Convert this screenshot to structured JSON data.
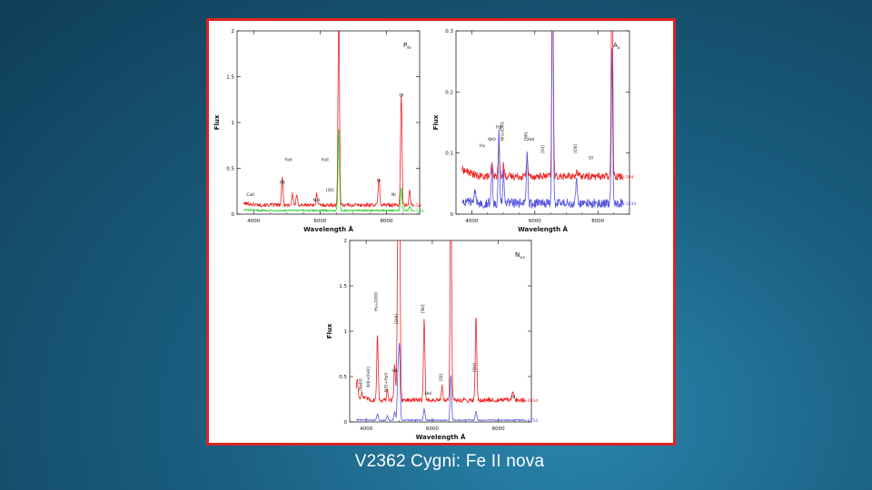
{
  "slide": {
    "caption": "V2362 Cygni:  Fe II nova"
  },
  "chart_data": [
    {
      "id": "p1",
      "type": "line",
      "xlabel": "Wavelength Å",
      "ylabel": "Flux",
      "xlim": [
        3500,
        9000
      ],
      "ylim": [
        0,
        2
      ],
      "xticks": [
        4000,
        6000,
        8000
      ],
      "xtick_labels": [
        "4000",
        "6000",
        "8000"
      ],
      "yticks": [
        0,
        0.5,
        1,
        1.5,
        2
      ],
      "ytick_labels": [
        "0",
        "0.5",
        "1",
        "1.5",
        "2"
      ],
      "stage_label": {
        "main": "P",
        "sub": "fe"
      },
      "color_key": {
        "red": "#e22",
        "green": "#2c2"
      },
      "series": [
        {
          "name": "+5d",
          "color": "red",
          "base": 0.1,
          "noise": 0.02,
          "lines": [
            [
              4861,
              0.3
            ],
            [
              5169,
              0.12
            ],
            [
              5300,
              0.1
            ],
            [
              5900,
              0.12
            ],
            [
              6563,
              2.2
            ],
            [
              7774,
              0.3
            ],
            [
              8446,
              1.2
            ],
            [
              8700,
              0.15
            ]
          ]
        },
        {
          "name": "+23d",
          "color": "green",
          "base": 0.04,
          "noise": 0.008,
          "lines": [
            [
              6563,
              0.9
            ],
            [
              8446,
              0.25
            ],
            [
              8700,
              0.05
            ]
          ]
        }
      ],
      "annotations": [
        {
          "text": "CaII",
          "x": 3900,
          "y": 0.2
        },
        {
          "text": "Hβ",
          "x": 4861,
          "y": 0.33
        },
        {
          "text": "FeII",
          "x": 5050,
          "y": 0.58
        },
        {
          "text": "FeII",
          "x": 6150,
          "y": 0.58
        },
        {
          "text": "[OI]",
          "x": 6300,
          "y": 0.25
        },
        {
          "text": "NaI",
          "x": 5890,
          "y": 0.14
        },
        {
          "text": "OI",
          "x": 7774,
          "y": 0.35
        },
        {
          "text": "NI",
          "x": 8216,
          "y": 0.2
        },
        {
          "text": "OI",
          "x": 8446,
          "y": 1.28
        }
      ]
    },
    {
      "id": "p2",
      "type": "line",
      "xlabel": "Wavelength Å",
      "ylabel": "Flux",
      "xlim": [
        3500,
        9000
      ],
      "ylim": [
        0,
        0.3
      ],
      "xticks": [
        4000,
        6000,
        8000
      ],
      "xtick_labels": [
        "4000",
        "6000",
        "8000"
      ],
      "yticks": [
        0,
        0.1,
        0.2,
        0.3
      ],
      "ytick_labels": [
        "0",
        "0.1",
        "0.2",
        "0.3"
      ],
      "stage_label": {
        "main": "A",
        "sub": "o"
      },
      "color_key": {
        "red": "#e22",
        "blue": "#55d"
      },
      "series": [
        {
          "name": "+50d",
          "color": "red",
          "base": 0.062,
          "noise": 0.006,
          "lines": [
            [
              4640,
              0.02
            ],
            [
              4861,
              0.05
            ],
            [
              5007,
              0.02
            ],
            [
              5755,
              0.03
            ],
            [
              6563,
              0.4
            ],
            [
              7320,
              0.01
            ],
            [
              8446,
              0.4
            ]
          ]
        },
        {
          "name": "+153d",
          "color": "blue",
          "base": 0.018,
          "noise": 0.008,
          "lines": [
            [
              4100,
              0.02
            ],
            [
              4640,
              0.06
            ],
            [
              4861,
              0.12
            ],
            [
              5007,
              0.05
            ],
            [
              5755,
              0.08
            ],
            [
              6563,
              0.4
            ],
            [
              7320,
              0.04
            ],
            [
              8446,
              0.25
            ]
          ]
        }
      ],
      "annotations": [
        {
          "text": "Hγ",
          "x": 4340,
          "y": 0.11
        },
        {
          "text": "N/O",
          "x": 4640,
          "y": 0.12
        },
        {
          "text": "Hβ",
          "x": 4861,
          "y": 0.14
        },
        {
          "text": "NII+[OIII]",
          "x": 5007,
          "y": 0.12
        },
        {
          "text": "[NII]",
          "x": 5755,
          "y": 0.12
        },
        {
          "text": "HeI",
          "x": 5876,
          "y": 0.12
        },
        {
          "text": "[OI]",
          "x": 6300,
          "y": 0.1
        },
        {
          "text": "[OII]",
          "x": 7325,
          "y": 0.1
        },
        {
          "text": "OI",
          "x": 7774,
          "y": 0.09
        }
      ]
    },
    {
      "id": "p3",
      "type": "line",
      "xlabel": "Wavelength Å",
      "ylabel": "Flux",
      "xlim": [
        3500,
        9000
      ],
      "ylim": [
        0,
        2
      ],
      "xticks": [
        4000,
        6000,
        8000
      ],
      "xtick_labels": [
        "4000",
        "6000",
        "8000"
      ],
      "yticks": [
        0,
        0.5,
        1,
        1.5,
        2
      ],
      "ytick_labels": [
        "0",
        "0.5",
        "1",
        "1.5",
        "2"
      ],
      "stage_label": {
        "main": "N",
        "sub": "a+"
      },
      "color_key": {
        "red": "#e22",
        "blue": "#55d"
      },
      "series": [
        {
          "name": "+283d",
          "color": "red",
          "base": 0.24,
          "noise": 0.025,
          "lines": [
            [
              3727,
              0.2
            ],
            [
              3869,
              0.05
            ],
            [
              4340,
              0.7
            ],
            [
              4640,
              0.1
            ],
            [
              4861,
              0.4
            ],
            [
              4959,
              1.9
            ],
            [
              5007,
              2.5
            ],
            [
              5755,
              0.9
            ],
            [
              6300,
              0.15
            ],
            [
              6563,
              2.5
            ],
            [
              7325,
              0.95
            ],
            [
              8446,
              0.1
            ]
          ]
        },
        {
          "name": "+475d",
          "color": "blue",
          "base": 0.02,
          "noise": 0.006,
          "lines": [
            [
              4340,
              0.07
            ],
            [
              4640,
              0.05
            ],
            [
              4861,
              0.09
            ],
            [
              4959,
              0.5
            ],
            [
              5007,
              0.8
            ],
            [
              5755,
              0.13
            ],
            [
              6563,
              0.5
            ],
            [
              7325,
              0.1
            ]
          ]
        }
      ],
      "annotations": [
        {
          "text": "[NeIII]",
          "x": 3869,
          "y": 0.34
        },
        {
          "text": "NIII+[FeV]",
          "x": 4100,
          "y": 0.38
        },
        {
          "text": "N/O+HeII",
          "x": 4640,
          "y": 0.33
        },
        {
          "text": "Hγ+[OIII]",
          "x": 4340,
          "y": 1.22
        },
        {
          "text": "Hβ",
          "x": 4861,
          "y": 0.55
        },
        {
          "text": "[OIII]",
          "x": 4959,
          "y": 1.08
        },
        {
          "text": "[NII]",
          "x": 5755,
          "y": 1.2
        },
        {
          "text": "HeI",
          "x": 5876,
          "y": 0.3
        },
        {
          "text": "[OI]",
          "x": 6300,
          "y": 0.45
        },
        {
          "text": "[OII]",
          "x": 7325,
          "y": 0.55
        },
        {
          "text": "OI",
          "x": 8446,
          "y": 0.26
        }
      ]
    }
  ]
}
